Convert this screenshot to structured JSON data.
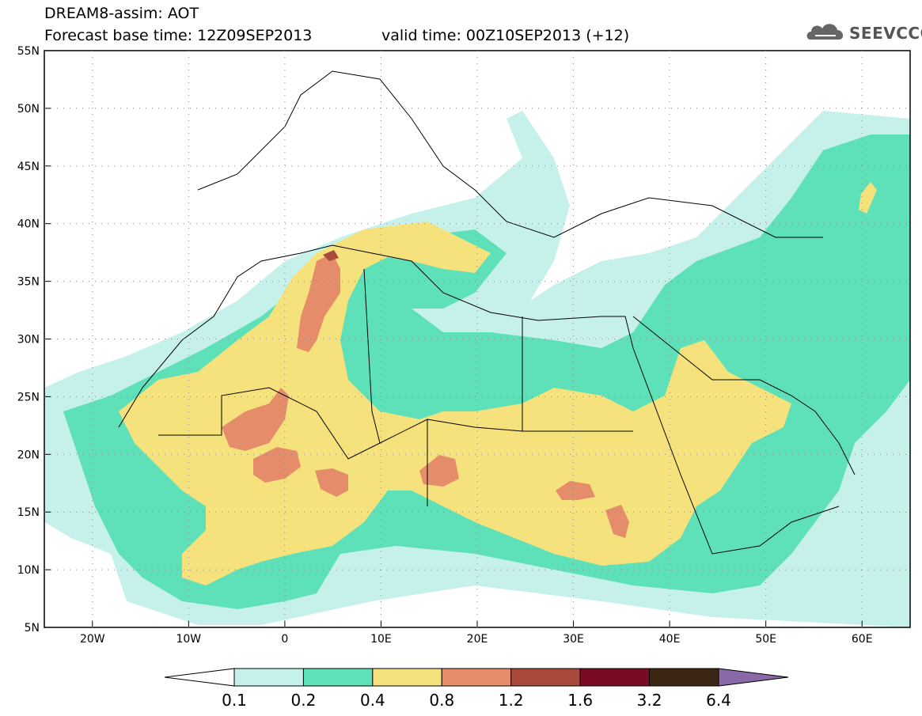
{
  "header": {
    "title_line1": "DREAM8-assim: AOT",
    "title_line2": "Forecast base time: 12Z09SEP2013",
    "valid_time": "valid time: 00Z10SEP2013 (+12)"
  },
  "logo": {
    "text": "SEEVCCC",
    "icon": "cloud-icon"
  },
  "map": {
    "projection": "plate-carree",
    "lon_range": [
      -25,
      65
    ],
    "lat_range": [
      5,
      55
    ],
    "lat_ticks": [
      "55N",
      "50N",
      "45N",
      "40N",
      "35N",
      "30N",
      "25N",
      "20N",
      "15N",
      "10N",
      "5N"
    ],
    "lon_ticks": [
      "20W",
      "10W",
      "0",
      "10E",
      "20E",
      "30E",
      "40E",
      "50E",
      "60E"
    ],
    "variable": "AOT",
    "background": "#ffffff",
    "coastline_color": "#000000"
  },
  "colorbar": {
    "labels": [
      "0.1",
      "0.2",
      "0.4",
      "0.8",
      "1.2",
      "1.6",
      "3.2",
      "6.4"
    ],
    "colors": [
      "#ffffff",
      "#c6f1ea",
      "#5ee0b8",
      "#f6e27c",
      "#e58c6a",
      "#a84a3c",
      "#7b0a25",
      "#3c2614",
      "#8a6aa6"
    ]
  }
}
